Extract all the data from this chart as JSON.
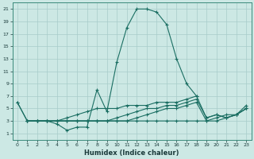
{
  "xlabel": "Humidex (Indice chaleur)",
  "bg_color": "#cce8e4",
  "grid_color": "#a8ccca",
  "line_color": "#1a6e62",
  "xlim": [
    -0.5,
    23.5
  ],
  "ylim": [
    0,
    22
  ],
  "yticks": [
    1,
    3,
    5,
    7,
    9,
    11,
    13,
    15,
    17,
    19,
    21
  ],
  "xticks": [
    0,
    1,
    2,
    3,
    4,
    5,
    6,
    7,
    8,
    9,
    10,
    11,
    12,
    13,
    14,
    15,
    16,
    17,
    18,
    19,
    20,
    21,
    22,
    23
  ],
  "series": [
    {
      "x": [
        0,
        1,
        2,
        3,
        4,
        5,
        6,
        7,
        8,
        9,
        10,
        11,
        12,
        13,
        14,
        15,
        16,
        17,
        18
      ],
      "y": [
        6.0,
        3.0,
        3.0,
        3.0,
        2.5,
        1.5,
        2.0,
        2.0,
        8.0,
        4.5,
        12.5,
        18.0,
        21.0,
        21.0,
        20.5,
        18.5,
        13.0,
        9.0,
        7.0
      ]
    },
    {
      "x": [
        1,
        2,
        3,
        4,
        5,
        6,
        7,
        8,
        9,
        10,
        11,
        12,
        13,
        14,
        15,
        16,
        17,
        18,
        19,
        20,
        21,
        22,
        23
      ],
      "y": [
        3.0,
        3.0,
        3.0,
        3.0,
        3.0,
        3.0,
        3.0,
        3.0,
        3.0,
        3.0,
        3.0,
        3.0,
        3.0,
        3.0,
        3.0,
        3.0,
        3.0,
        3.0,
        3.0,
        3.0,
        3.5,
        4.0,
        5.0
      ]
    },
    {
      "x": [
        1,
        2,
        3,
        4,
        5,
        6,
        7,
        8,
        9,
        10,
        11,
        12,
        13,
        14,
        15,
        16,
        17,
        18,
        19,
        20,
        21,
        22,
        23
      ],
      "y": [
        3.0,
        3.0,
        3.0,
        3.0,
        3.0,
        3.0,
        3.0,
        3.0,
        3.0,
        3.0,
        3.0,
        3.5,
        4.0,
        4.5,
        5.0,
        5.0,
        5.5,
        6.0,
        3.0,
        3.5,
        4.0,
        4.0,
        5.0
      ]
    },
    {
      "x": [
        1,
        2,
        3,
        4,
        5,
        6,
        7,
        8,
        9,
        10,
        11,
        12,
        13,
        14,
        15,
        16,
        17,
        18,
        19,
        20,
        21,
        22,
        23
      ],
      "y": [
        3.0,
        3.0,
        3.0,
        3.0,
        3.0,
        3.0,
        3.0,
        3.0,
        3.0,
        3.5,
        4.0,
        4.5,
        5.0,
        5.0,
        5.5,
        5.5,
        6.0,
        6.5,
        3.5,
        4.0,
        3.5,
        4.0,
        5.0
      ]
    },
    {
      "x": [
        0,
        1,
        2,
        3,
        4,
        5,
        6,
        7,
        8,
        9,
        10,
        11,
        12,
        13,
        14,
        15,
        16,
        17,
        18,
        19,
        20,
        21,
        22,
        23
      ],
      "y": [
        6.0,
        3.0,
        3.0,
        3.0,
        3.0,
        3.5,
        4.0,
        4.5,
        5.0,
        5.0,
        5.0,
        5.5,
        5.5,
        5.5,
        6.0,
        6.0,
        6.0,
        6.5,
        7.0,
        3.5,
        4.0,
        3.5,
        4.0,
        5.5
      ]
    }
  ]
}
